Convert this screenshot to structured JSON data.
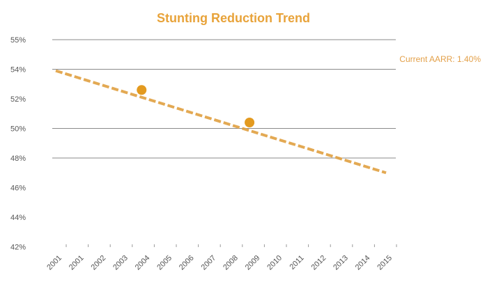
{
  "chart_data": {
    "type": "line",
    "title": "Stunting Reduction Trend",
    "xlabel": "",
    "ylabel": "",
    "x": [
      "2001",
      "2001",
      "2002",
      "2003",
      "2004",
      "2005",
      "2006",
      "2007",
      "2008",
      "2009",
      "2010",
      "2011",
      "2012",
      "2013",
      "2014",
      "2015"
    ],
    "y_ticks": [
      "55%",
      "54%",
      "52%",
      "50%",
      "48%",
      "46%",
      "44%",
      "42%"
    ],
    "ylim": [
      42,
      56
    ],
    "grid": true,
    "series": [
      {
        "name": "",
        "style": "dashed-trend",
        "x": [
          2000,
          2015
        ],
        "y": [
          53.9,
          47.0
        ]
      },
      {
        "name": "",
        "style": "markers",
        "x": [
          2003.9,
          2008.8
        ],
        "y": [
          52.6,
          50.4
        ]
      }
    ],
    "annotations": [
      {
        "text": "Current AARR: 1.40%"
      }
    ],
    "colors": {
      "title": "#E8A33A",
      "line": "#E0A040",
      "marker": "#E39A1F",
      "annotation": "#E3A049",
      "grid": "#8a8a8a"
    }
  }
}
